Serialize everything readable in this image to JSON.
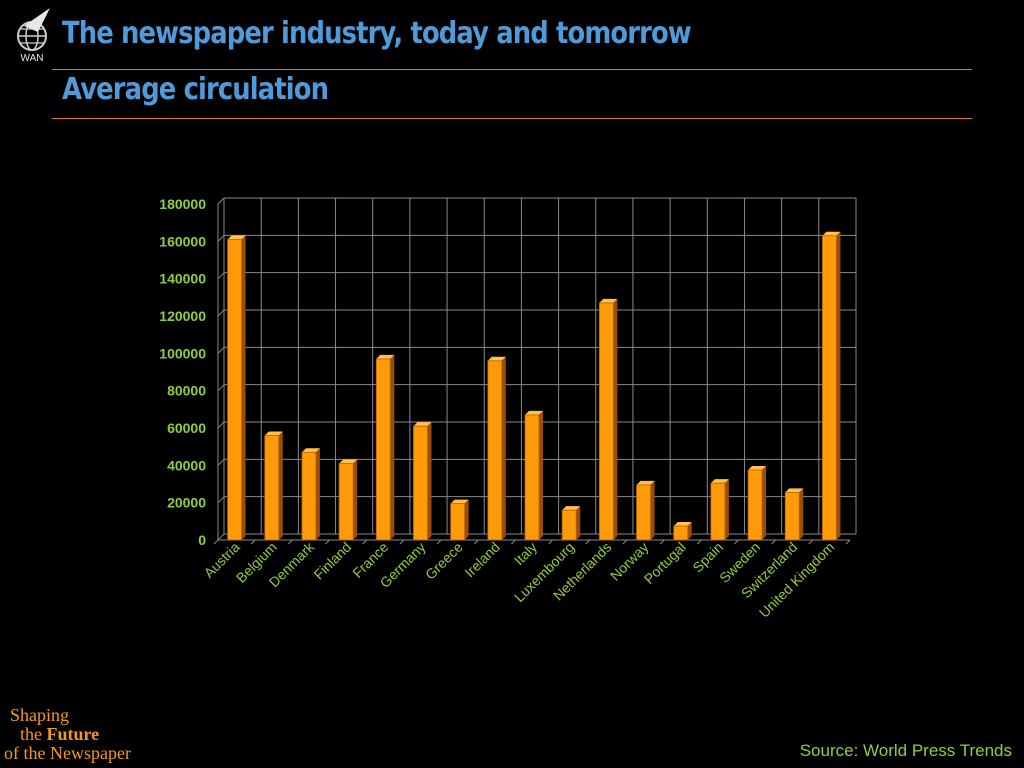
{
  "slide": {
    "title": "The newspaper industry, today and tomorrow",
    "subtitle": "Average circulation",
    "logo_text": "WAN",
    "footer": {
      "line1": "Shaping",
      "line2_the": "the",
      "line2_future": "Future",
      "line3": "of the Newspaper"
    },
    "source": "Source: World Press Trends"
  },
  "colors": {
    "background": "#000000",
    "title": "#4f9bd9",
    "rule": "#e07a1f",
    "bar_front": "#ff9a0a",
    "bar_top": "#ffc04d",
    "bar_side": "#9a4e00",
    "axis_labels": "#8fce3c",
    "grid": "#8a8a8a"
  },
  "chart_data": {
    "type": "bar",
    "title": "",
    "xlabel": "",
    "ylabel": "",
    "ylim": [
      0,
      180000
    ],
    "yticks": [
      0,
      20000,
      40000,
      60000,
      80000,
      100000,
      120000,
      140000,
      160000,
      180000
    ],
    "grid": true,
    "legend": "none",
    "categories": [
      "Austria",
      "Belgium",
      "Denmark",
      "Finland",
      "France",
      "Germany",
      "Greece",
      "Ireland",
      "Italy",
      "Luxembourg",
      "Netherlands",
      "Norway",
      "Portugal",
      "Spain",
      "Sweden",
      "Switzerland",
      "United Kingdom"
    ],
    "values": [
      161000,
      56000,
      47000,
      41000,
      97000,
      61000,
      19500,
      96000,
      67000,
      16000,
      127000,
      29500,
      7500,
      30500,
      37500,
      25500,
      163000
    ]
  }
}
